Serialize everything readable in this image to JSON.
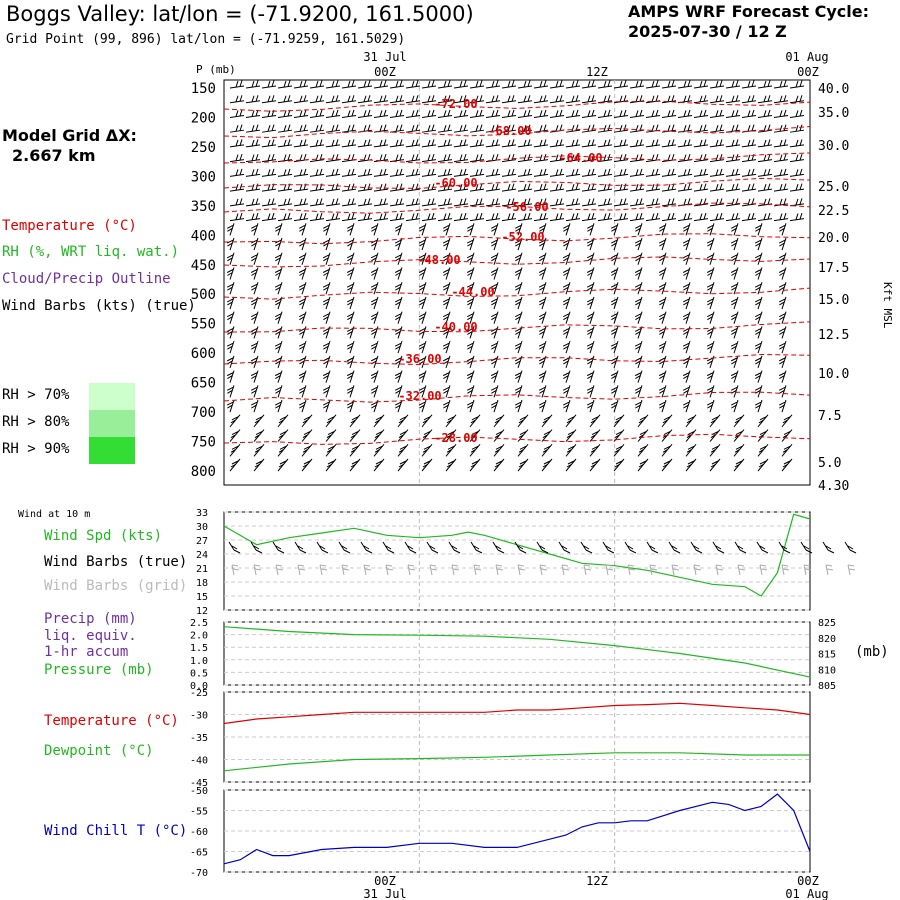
{
  "header": {
    "title": "Boggs Valley:  lat/lon = (-71.9200, 161.5000)",
    "subtitle": "Grid Point (99, 896) lat/lon = (-71.9259, 161.5029)",
    "cycle_line1": "AMPS WRF Forecast Cycle:",
    "cycle_line2": "2025-07-30 / 12  Z",
    "grid_dx_line1": "Model Grid ΔX:",
    "grid_dx_line2": "2.667 km"
  },
  "legend": {
    "temperature": "Temperature (°C)",
    "rh": "RH (%, WRT liq. wat.)",
    "cloud": "Cloud/Precip Outline",
    "wind": "Wind Barbs (kts) (true)",
    "rh70": "RH > 70%",
    "rh80": "RH > 80%",
    "rh90": "RH > 90%",
    "colors": {
      "temperature": "#e00000",
      "rh": "#22b822",
      "cloud": "#7030a0",
      "rh70": "#ccffcc",
      "rh80": "#99ee99",
      "rh90": "#33dd33"
    }
  },
  "time_axis": {
    "top_dates": [
      "31 Jul",
      "01 Aug"
    ],
    "hours": [
      "00Z",
      "12Z",
      "00Z"
    ],
    "bottom_dates": [
      "31 Jul",
      "01 Aug"
    ]
  },
  "panel_labels": {
    "wind10m": "Wind at 10 m",
    "wind_spd": "Wind Spd (kts)",
    "wind_barbs_true": "Wind Barbs (true)",
    "wind_barbs_grid": "Wind Barbs (grid)",
    "precip": "Precip (mm)",
    "liq": "liq. equiv.",
    "accum": "1-hr accum",
    "pressure": "Pressure (mb)",
    "pressure_unit": "(mb)",
    "temperature": "Temperature (°C)",
    "dewpoint": "Dewpoint (°C)",
    "windchill": "Wind Chill T (°C)",
    "p_axis": "P (mb)",
    "kft": "Kft MSL"
  },
  "chart_data": [
    {
      "type": "line",
      "title": "",
      "xlabel": "",
      "ylabel": "P (mb)",
      "y_ticks": [
        "150",
        "200",
        "250",
        "300",
        "350",
        "400",
        "450",
        "500",
        "550",
        "600",
        "650",
        "700",
        "750",
        "800"
      ],
      "right_ticks": [
        "40.0",
        "35.0",
        "30.0",
        "25.0",
        "22.5",
        "20.0",
        "17.5",
        "15.0",
        "12.5",
        "10.0",
        "7.5",
        "5.0",
        "4.30"
      ],
      "right_label": "Kft MSL",
      "isotherm_labels": [
        "-72.00",
        "-68.00",
        "-64.00",
        "-60.00",
        "-56.00",
        "-52.00",
        "-48.00",
        "-44.00",
        "-40.00",
        "-36.00",
        "-32.00",
        "-28.00"
      ],
      "isotherms_C": [
        -72,
        -68,
        -64,
        -60,
        -56,
        -52,
        -48,
        -44,
        -40,
        -36,
        -32,
        -28
      ],
      "x_hours": [
        0,
        36
      ],
      "grid": true
    },
    {
      "type": "line",
      "ylabel": "Wind Spd (kts)",
      "y_ticks": [
        "33",
        "30",
        "27",
        "24",
        "21",
        "18",
        "15",
        "12"
      ],
      "ylim": [
        12,
        33
      ],
      "series": [
        {
          "name": "Wind Spd (kts)",
          "color": "#22b822",
          "x": [
            0,
            2,
            4,
            6,
            8,
            10,
            12,
            14,
            15,
            16,
            18,
            20,
            22,
            24,
            26,
            28,
            30,
            32,
            33,
            34,
            35,
            36
          ],
          "values": [
            30,
            26,
            27.5,
            28.5,
            29.5,
            28,
            27.5,
            28,
            28.7,
            28,
            26,
            24,
            22,
            21.5,
            20.5,
            19,
            17.5,
            17,
            15,
            20,
            32.5,
            31.5
          ]
        }
      ]
    },
    {
      "type": "line",
      "ylabel": "Precip (mm) / Pressure (mb)",
      "y_ticks": [
        "2.5",
        "2.0",
        "1.5",
        "1.0",
        "0.5",
        "0.0"
      ],
      "right_ticks": [
        "825",
        "820",
        "815",
        "810",
        "805"
      ],
      "ylim": [
        0,
        2.5
      ],
      "right_lim": [
        805,
        825
      ],
      "series": [
        {
          "name": "Pressure (mb)",
          "color": "#22b822",
          "x": [
            0,
            4,
            8,
            12,
            16,
            20,
            24,
            28,
            32,
            36
          ],
          "values": [
            823.5,
            822,
            821,
            820.8,
            820.5,
            819.5,
            817.5,
            815,
            812,
            807.5
          ]
        }
      ]
    },
    {
      "type": "line",
      "ylabel": "Temperature / Dewpoint (°C)",
      "y_ticks": [
        "-25",
        "-30",
        "-35",
        "-40",
        "-45"
      ],
      "ylim": [
        -45,
        -25
      ],
      "series": [
        {
          "name": "Temperature (°C)",
          "color": "#e00000",
          "x": [
            0,
            2,
            4,
            6,
            8,
            10,
            12,
            14,
            16,
            18,
            20,
            22,
            24,
            26,
            28,
            30,
            32,
            34,
            36
          ],
          "values": [
            -32,
            -31,
            -30.5,
            -30,
            -29.5,
            -29.5,
            -29.5,
            -29.5,
            -29.5,
            -29,
            -29,
            -28.5,
            -28,
            -27.8,
            -27.5,
            -28,
            -28.5,
            -29,
            -30
          ]
        },
        {
          "name": "Dewpoint (°C)",
          "color": "#22b822",
          "x": [
            0,
            4,
            8,
            12,
            16,
            20,
            24,
            28,
            32,
            36
          ],
          "values": [
            -42.5,
            -41,
            -40,
            -39.8,
            -39.5,
            -39,
            -38.5,
            -38.5,
            -39,
            -39
          ]
        }
      ]
    },
    {
      "type": "line",
      "ylabel": "Wind Chill T (°C)",
      "y_ticks": [
        "-50",
        "-55",
        "-60",
        "-65",
        "-70"
      ],
      "ylim": [
        -70,
        -50
      ],
      "series": [
        {
          "name": "Wind Chill T (°C)",
          "color": "#0000c0",
          "x": [
            0,
            1,
            2,
            3,
            4,
            6,
            8,
            10,
            12,
            14,
            16,
            18,
            20,
            21,
            22,
            23,
            24,
            25,
            26,
            28,
            30,
            31,
            32,
            33,
            34,
            35,
            36
          ],
          "values": [
            -68,
            -67,
            -64.5,
            -66,
            -66,
            -64.5,
            -64,
            -64,
            -63,
            -63,
            -64,
            -64,
            -62,
            -61,
            -59,
            -58,
            -58,
            -57.5,
            -57.5,
            -55,
            -53,
            -53.5,
            -55,
            -54,
            -51,
            -55,
            -65
          ]
        }
      ]
    }
  ]
}
